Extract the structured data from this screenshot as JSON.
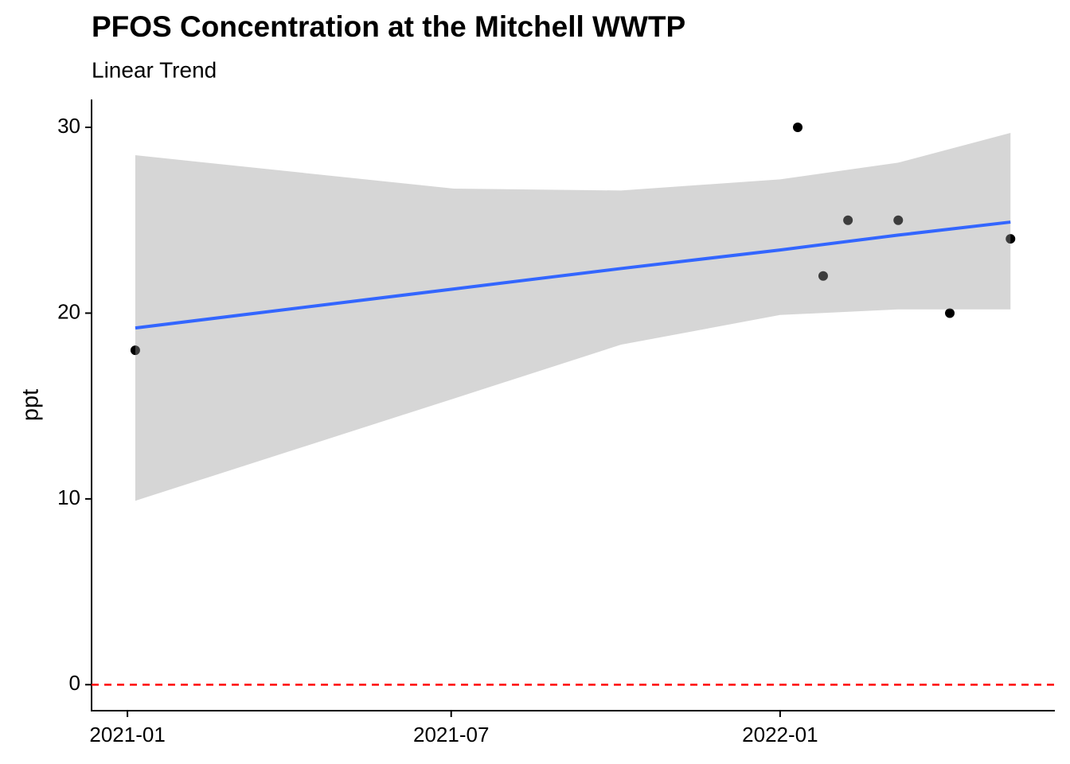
{
  "chart_data": {
    "type": "scatter",
    "title": "PFOS Concentration at the Mitchell WWTP",
    "subtitle": "Linear Trend",
    "y_label": "ppt",
    "x": [
      2021.012,
      2022.027,
      2022.066,
      2022.104,
      2022.181,
      2022.26,
      2022.353
    ],
    "values": [
      18,
      30,
      22,
      25,
      25,
      20,
      24
    ],
    "color": "#000000",
    "trend": {
      "x": [
        2021.012,
        2021.5,
        2021.756,
        2022.0,
        2022.181,
        2022.353
      ],
      "values": [
        19.2,
        21.3,
        22.4,
        23.4,
        24.2,
        24.9
      ],
      "lower": [
        9.9,
        15.4,
        18.3,
        19.9,
        20.2,
        20.2
      ],
      "upper": [
        28.5,
        26.7,
        26.6,
        27.2,
        28.1,
        29.7
      ],
      "color": "#3366ff",
      "ribbon_color": "#999999",
      "ribbon_alpha": 0.4
    },
    "hline": {
      "value": 0,
      "color": "#ff0000"
    },
    "xlim": [
      2020.945,
      2022.421
    ],
    "ylim": [
      -1.4,
      31.5
    ],
    "xticks": [
      {
        "value": 2021.0,
        "label": "2021-01"
      },
      {
        "value": 2021.496,
        "label": "2021-07"
      },
      {
        "value": 2022.0,
        "label": "2022-01"
      }
    ],
    "yticks": [
      0,
      10,
      20,
      30
    ]
  }
}
